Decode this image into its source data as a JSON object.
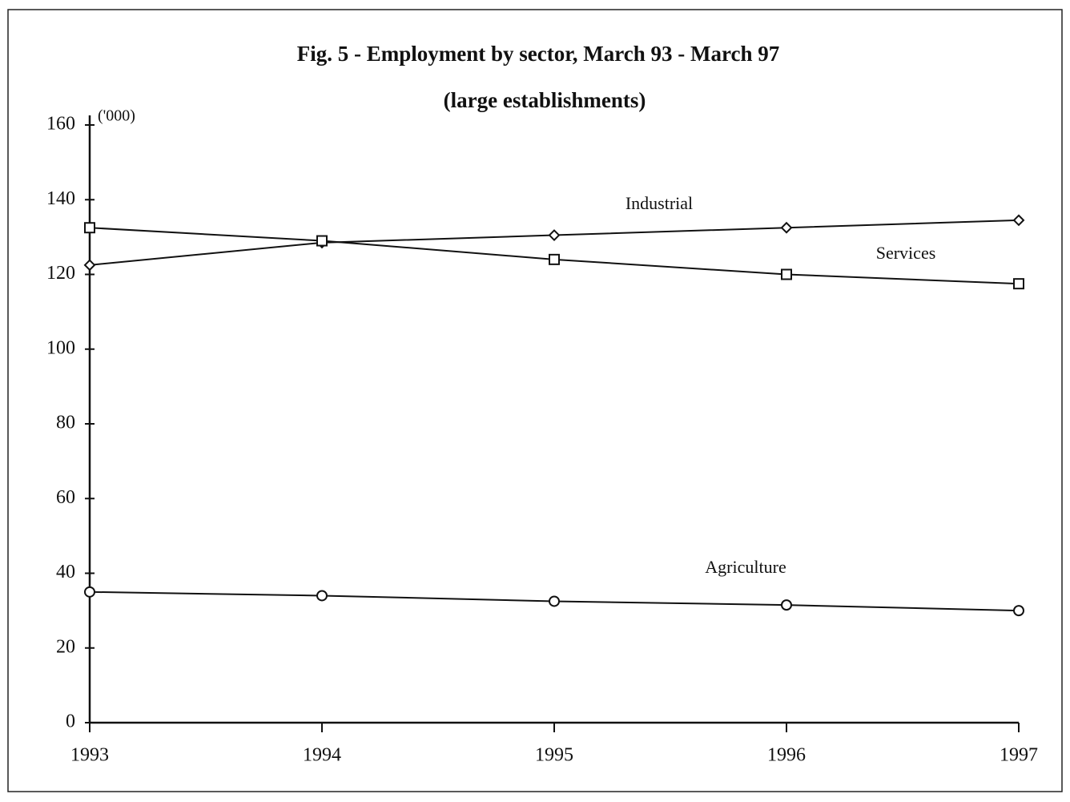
{
  "chart_data": {
    "type": "line",
    "title": "Fig.  5 - Employment by sector, March 93 - March 97",
    "subtitle": "(large establishments)",
    "y_label": "('000)",
    "categories": [
      "1993",
      "1994",
      "1995",
      "1996",
      "1997"
    ],
    "series": [
      {
        "name": "Industrial",
        "color": "#111111",
        "marker": "diamond",
        "values": [
          122.5,
          128.5,
          130.5,
          132.5,
          134.5
        ]
      },
      {
        "name": "Services",
        "color": "#111111",
        "marker": "square",
        "values": [
          132.5,
          129,
          124,
          120,
          117.5
        ]
      },
      {
        "name": "Agriculture",
        "color": "#111111",
        "marker": "circle",
        "values": [
          35,
          34,
          32.5,
          31.5,
          30
        ]
      }
    ],
    "ylim": [
      0,
      160
    ],
    "yticks": [
      0,
      20,
      40,
      60,
      80,
      100,
      120,
      140,
      160
    ],
    "grid": false
  }
}
